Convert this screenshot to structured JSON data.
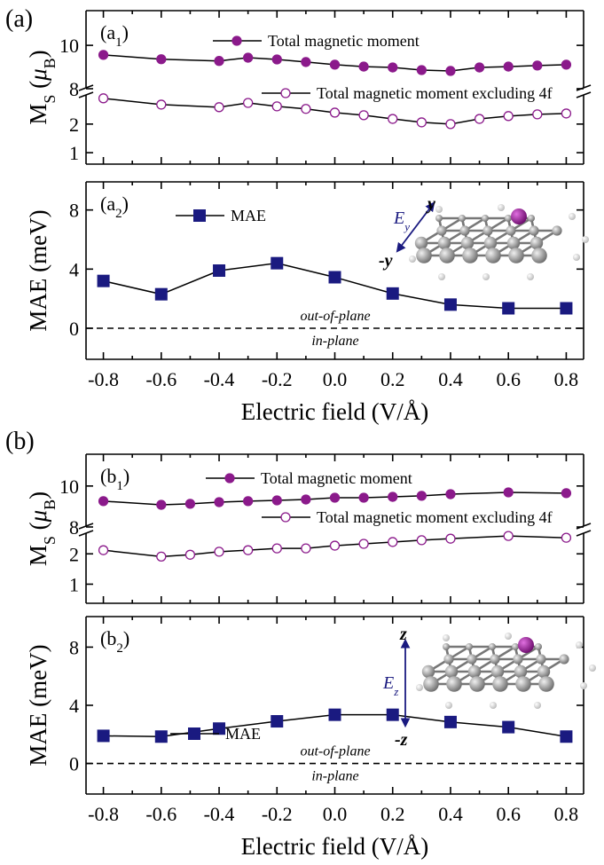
{
  "chart_data": [
    {
      "type": "line",
      "group_label": "(a)",
      "label_parts": [
        "(a",
        "1",
        ")"
      ],
      "ylabel_parts": [
        "M",
        "S",
        " (",
        "μ",
        "B",
        ")"
      ],
      "ylim": [
        0.6,
        3.05
      ],
      "yticks": [
        1,
        2
      ],
      "y2lim": [
        8,
        11.6
      ],
      "y2ticks": [
        8,
        10
      ],
      "series": [
        {
          "name": "Total magnetic moment",
          "color": "#8b1a8b",
          "marker": "filled-circle",
          "axis": "y2",
          "x": [
            -0.8,
            -0.6,
            -0.4,
            -0.3,
            -0.2,
            -0.1,
            0,
            0.1,
            0.2,
            0.3,
            0.4,
            0.5,
            0.6,
            0.7,
            0.8
          ],
          "values": [
            9.56,
            9.36,
            9.28,
            9.43,
            9.35,
            9.23,
            9.11,
            9.02,
            8.98,
            8.86,
            8.82,
            8.98,
            9.02,
            9.07,
            9.11
          ]
        },
        {
          "name": "Total magnetic moment excluding 4f",
          "color": "#8b1a8b",
          "marker": "open-circle",
          "x": [
            -0.8,
            -0.6,
            -0.4,
            -0.3,
            -0.2,
            -0.1,
            0,
            0.1,
            0.2,
            0.3,
            0.4,
            0.5,
            0.6,
            0.7,
            0.8
          ],
          "values": [
            2.9,
            2.68,
            2.59,
            2.74,
            2.62,
            2.53,
            2.4,
            2.31,
            2.18,
            2.06,
            2.0,
            2.18,
            2.28,
            2.34,
            2.37
          ]
        }
      ]
    },
    {
      "type": "line",
      "label_parts": [
        "(a",
        "2",
        ")"
      ],
      "ylabel": "MAE (meV)",
      "xlabel": "Electric field (V/Å)",
      "xlim": [
        -0.86,
        0.86
      ],
      "xticks": [
        -0.8,
        -0.6,
        -0.4,
        -0.2,
        {
          "value": 0,
          "label": "0.0"
        },
        0.2,
        0.4,
        0.6,
        0.8
      ],
      "ylim": [
        -2.1,
        9.9
      ],
      "yticks": [
        0,
        4,
        8
      ],
      "reference_line": 0,
      "annotations": [
        "out-of-plane",
        "in-plane"
      ],
      "inset": {
        "field": "E",
        "field_sub": "y",
        "pos": "y",
        "neg": "-y"
      },
      "series": [
        {
          "name": "MAE",
          "color": "#1a1a80",
          "marker": "square",
          "x": [
            -0.8,
            -0.6,
            -0.4,
            -0.2,
            0,
            0.2,
            0.4,
            0.6,
            0.8
          ],
          "values": [
            3.2,
            2.3,
            3.9,
            4.4,
            3.45,
            2.35,
            1.6,
            1.35,
            1.35
          ]
        }
      ]
    },
    {
      "type": "line",
      "group_label": "(b)",
      "label_parts": [
        "(b",
        "1",
        ")"
      ],
      "ylabel_parts": [
        "M",
        "S",
        " (",
        "μ",
        "B",
        ")"
      ],
      "ylim": [
        0.37,
        2.71
      ],
      "yticks": [
        1,
        2
      ],
      "y2lim": [
        8,
        11.55
      ],
      "y2ticks": [
        8,
        10
      ],
      "series": [
        {
          "name": "Total magnetic moment",
          "color": "#8b1a8b",
          "marker": "filled-circle",
          "axis": "y2",
          "x": [
            -0.8,
            -0.6,
            -0.5,
            -0.4,
            -0.3,
            -0.2,
            -0.1,
            0,
            0.1,
            0.2,
            0.3,
            0.4,
            0.6,
            0.8
          ],
          "values": [
            9.26,
            9.08,
            9.13,
            9.21,
            9.26,
            9.3,
            9.34,
            9.43,
            9.43,
            9.47,
            9.52,
            9.6,
            9.69,
            9.65
          ]
        },
        {
          "name": "Total magnetic moment excluding 4f",
          "color": "#8b1a8b",
          "marker": "open-circle",
          "x": [
            -0.8,
            -0.6,
            -0.5,
            -0.4,
            -0.3,
            -0.2,
            -0.1,
            0,
            0.1,
            0.2,
            0.3,
            0.4,
            0.6,
            0.8
          ],
          "values": [
            2.12,
            1.91,
            1.97,
            2.07,
            2.12,
            2.18,
            2.18,
            2.27,
            2.33,
            2.39,
            2.45,
            2.5,
            2.59,
            2.53
          ]
        }
      ]
    },
    {
      "type": "line",
      "label_parts": [
        "(b",
        "2",
        ")"
      ],
      "ylabel": "MAE (meV)",
      "xlabel": "Electric field (V/Å)",
      "xlim": [
        -0.86,
        0.86
      ],
      "xticks": [
        -0.8,
        -0.6,
        -0.4,
        -0.2,
        {
          "value": 0,
          "label": "0.0"
        },
        0.2,
        0.4,
        0.6,
        0.8
      ],
      "ylim": [
        -2.1,
        10.1
      ],
      "yticks": [
        0,
        4,
        8
      ],
      "reference_line": 0,
      "annotations": [
        "out-of-plane",
        "in-plane"
      ],
      "inset": {
        "field": "E",
        "field_sub": "z",
        "pos": "z",
        "neg": "-z"
      },
      "series": [
        {
          "name": "MAE",
          "color": "#1a1a80",
          "marker": "square",
          "x": [
            -0.8,
            -0.6,
            -0.4,
            -0.2,
            0,
            0.2,
            0.4,
            0.6,
            0.8
          ],
          "values": [
            1.9,
            1.85,
            2.4,
            2.9,
            3.35,
            3.35,
            2.85,
            2.5,
            1.85
          ]
        }
      ]
    }
  ]
}
